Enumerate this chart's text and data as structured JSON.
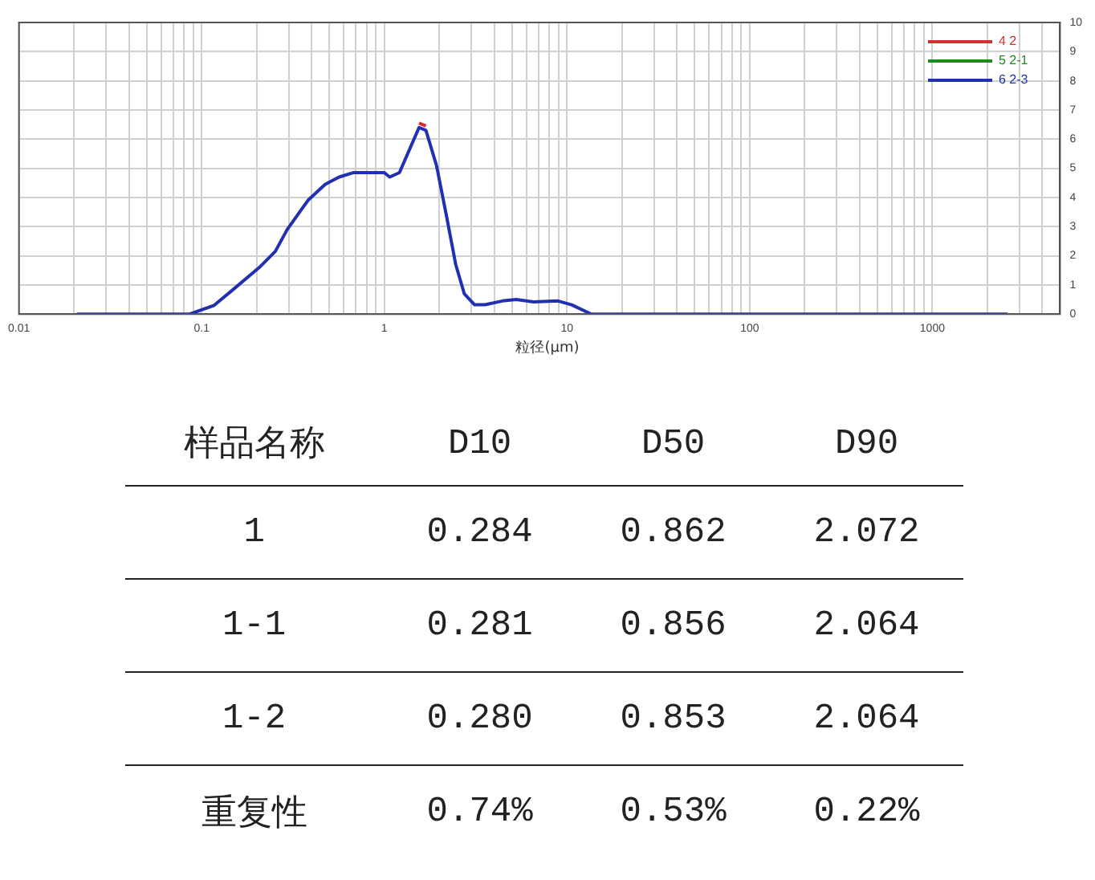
{
  "chart_data": [
    {
      "type": "line",
      "xlabel": "粒径(μm)",
      "log": "x",
      "grid": true,
      "marker": "none",
      "legend": "top right",
      "xlim": [
        0.01,
        5000
      ],
      "ylim": [
        0,
        10
      ],
      "xticks": [
        0.01,
        {
          "value": 0.02,
          "label": null
        },
        {
          "value": 0.03,
          "label": null
        },
        {
          "value": 0.04,
          "label": null
        },
        {
          "value": 0.05,
          "label": null
        },
        {
          "value": 0.06,
          "label": null
        },
        {
          "value": 0.07,
          "label": null
        },
        {
          "value": 0.08,
          "label": null
        },
        {
          "value": 0.09,
          "label": null
        },
        0.1,
        {
          "value": 0.2,
          "label": null
        },
        {
          "value": 0.3,
          "label": null
        },
        {
          "value": 0.4,
          "label": null
        },
        {
          "value": 0.5,
          "label": null
        },
        {
          "value": 0.6,
          "label": null
        },
        {
          "value": 0.7,
          "label": null
        },
        {
          "value": 0.8,
          "label": null
        },
        {
          "value": 0.9,
          "label": null
        },
        1,
        {
          "value": 2,
          "label": null
        },
        {
          "value": 3,
          "label": null
        },
        {
          "value": 4,
          "label": null
        },
        {
          "value": 5,
          "label": null
        },
        {
          "value": 6,
          "label": null
        },
        {
          "value": 7,
          "label": null
        },
        {
          "value": 8,
          "label": null
        },
        {
          "value": 9,
          "label": null
        },
        10,
        {
          "value": 20,
          "label": null
        },
        {
          "value": 30,
          "label": null
        },
        {
          "value": 40,
          "label": null
        },
        {
          "value": 50,
          "label": null
        },
        {
          "value": 60,
          "label": null
        },
        {
          "value": 70,
          "label": null
        },
        {
          "value": 80,
          "label": null
        },
        {
          "value": 90,
          "label": null
        },
        100,
        {
          "value": 200,
          "label": null
        },
        {
          "value": 300,
          "label": null
        },
        {
          "value": 400,
          "label": null
        },
        {
          "value": 500,
          "label": null
        },
        {
          "value": 600,
          "label": null
        },
        {
          "value": 700,
          "label": null
        },
        {
          "value": 800,
          "label": null
        },
        {
          "value": 900,
          "label": null
        },
        1000,
        {
          "value": 2000,
          "label": null
        },
        {
          "value": 3000,
          "label": null
        },
        {
          "value": 4000,
          "label": null
        },
        {
          "value": 5000,
          "label": null
        }
      ],
      "yticks": [
        0,
        1,
        2,
        3,
        4,
        5,
        6,
        7,
        8,
        9,
        10
      ],
      "series": [
        {
          "name": "4 2",
          "color": "#d03030",
          "x": [
            1.55,
            1.69
          ],
          "values": [
            6.55,
            6.45
          ]
        },
        {
          "name": "5 2-1",
          "color": "#1f8a1f"
        },
        {
          "name": "6 2-3",
          "color": "#2030b0",
          "x": [
            0.0207,
            0.086,
            0.117,
            0.146,
            0.207,
            0.253,
            0.294,
            0.382,
            0.475,
            0.566,
            0.675,
            1,
            1.07,
            1.21,
            1.55,
            1.69,
            1.93,
            2.2,
            2.46,
            2.74,
            3.12,
            3.56,
            4.43,
            5.27,
            6.56,
            8.93,
            10.6,
            13.6,
            2580
          ],
          "values": [
            0,
            0,
            0.3,
            0.8,
            1.6,
            2.15,
            2.9,
            3.9,
            4.45,
            4.7,
            4.85,
            4.85,
            4.7,
            4.85,
            6.4,
            6.3,
            5.1,
            3.3,
            1.7,
            0.7,
            0.32,
            0.32,
            0.45,
            0.5,
            0.42,
            0.45,
            0.32,
            0,
            0
          ]
        }
      ]
    },
    {
      "type": "other",
      "categories": [
        "样品名称",
        "D10",
        "D50",
        "D90"
      ],
      "y_categories": [
        "1",
        "1-1",
        "1-2",
        "重复性"
      ],
      "cell_labels": [
        [
          "0.284",
          "0.862",
          "2.072"
        ],
        [
          "0.281",
          "0.856",
          "2.064"
        ],
        [
          "0.280",
          "0.853",
          "2.064"
        ],
        [
          "0.74%",
          "0.53%",
          "0.22%"
        ]
      ]
    }
  ]
}
